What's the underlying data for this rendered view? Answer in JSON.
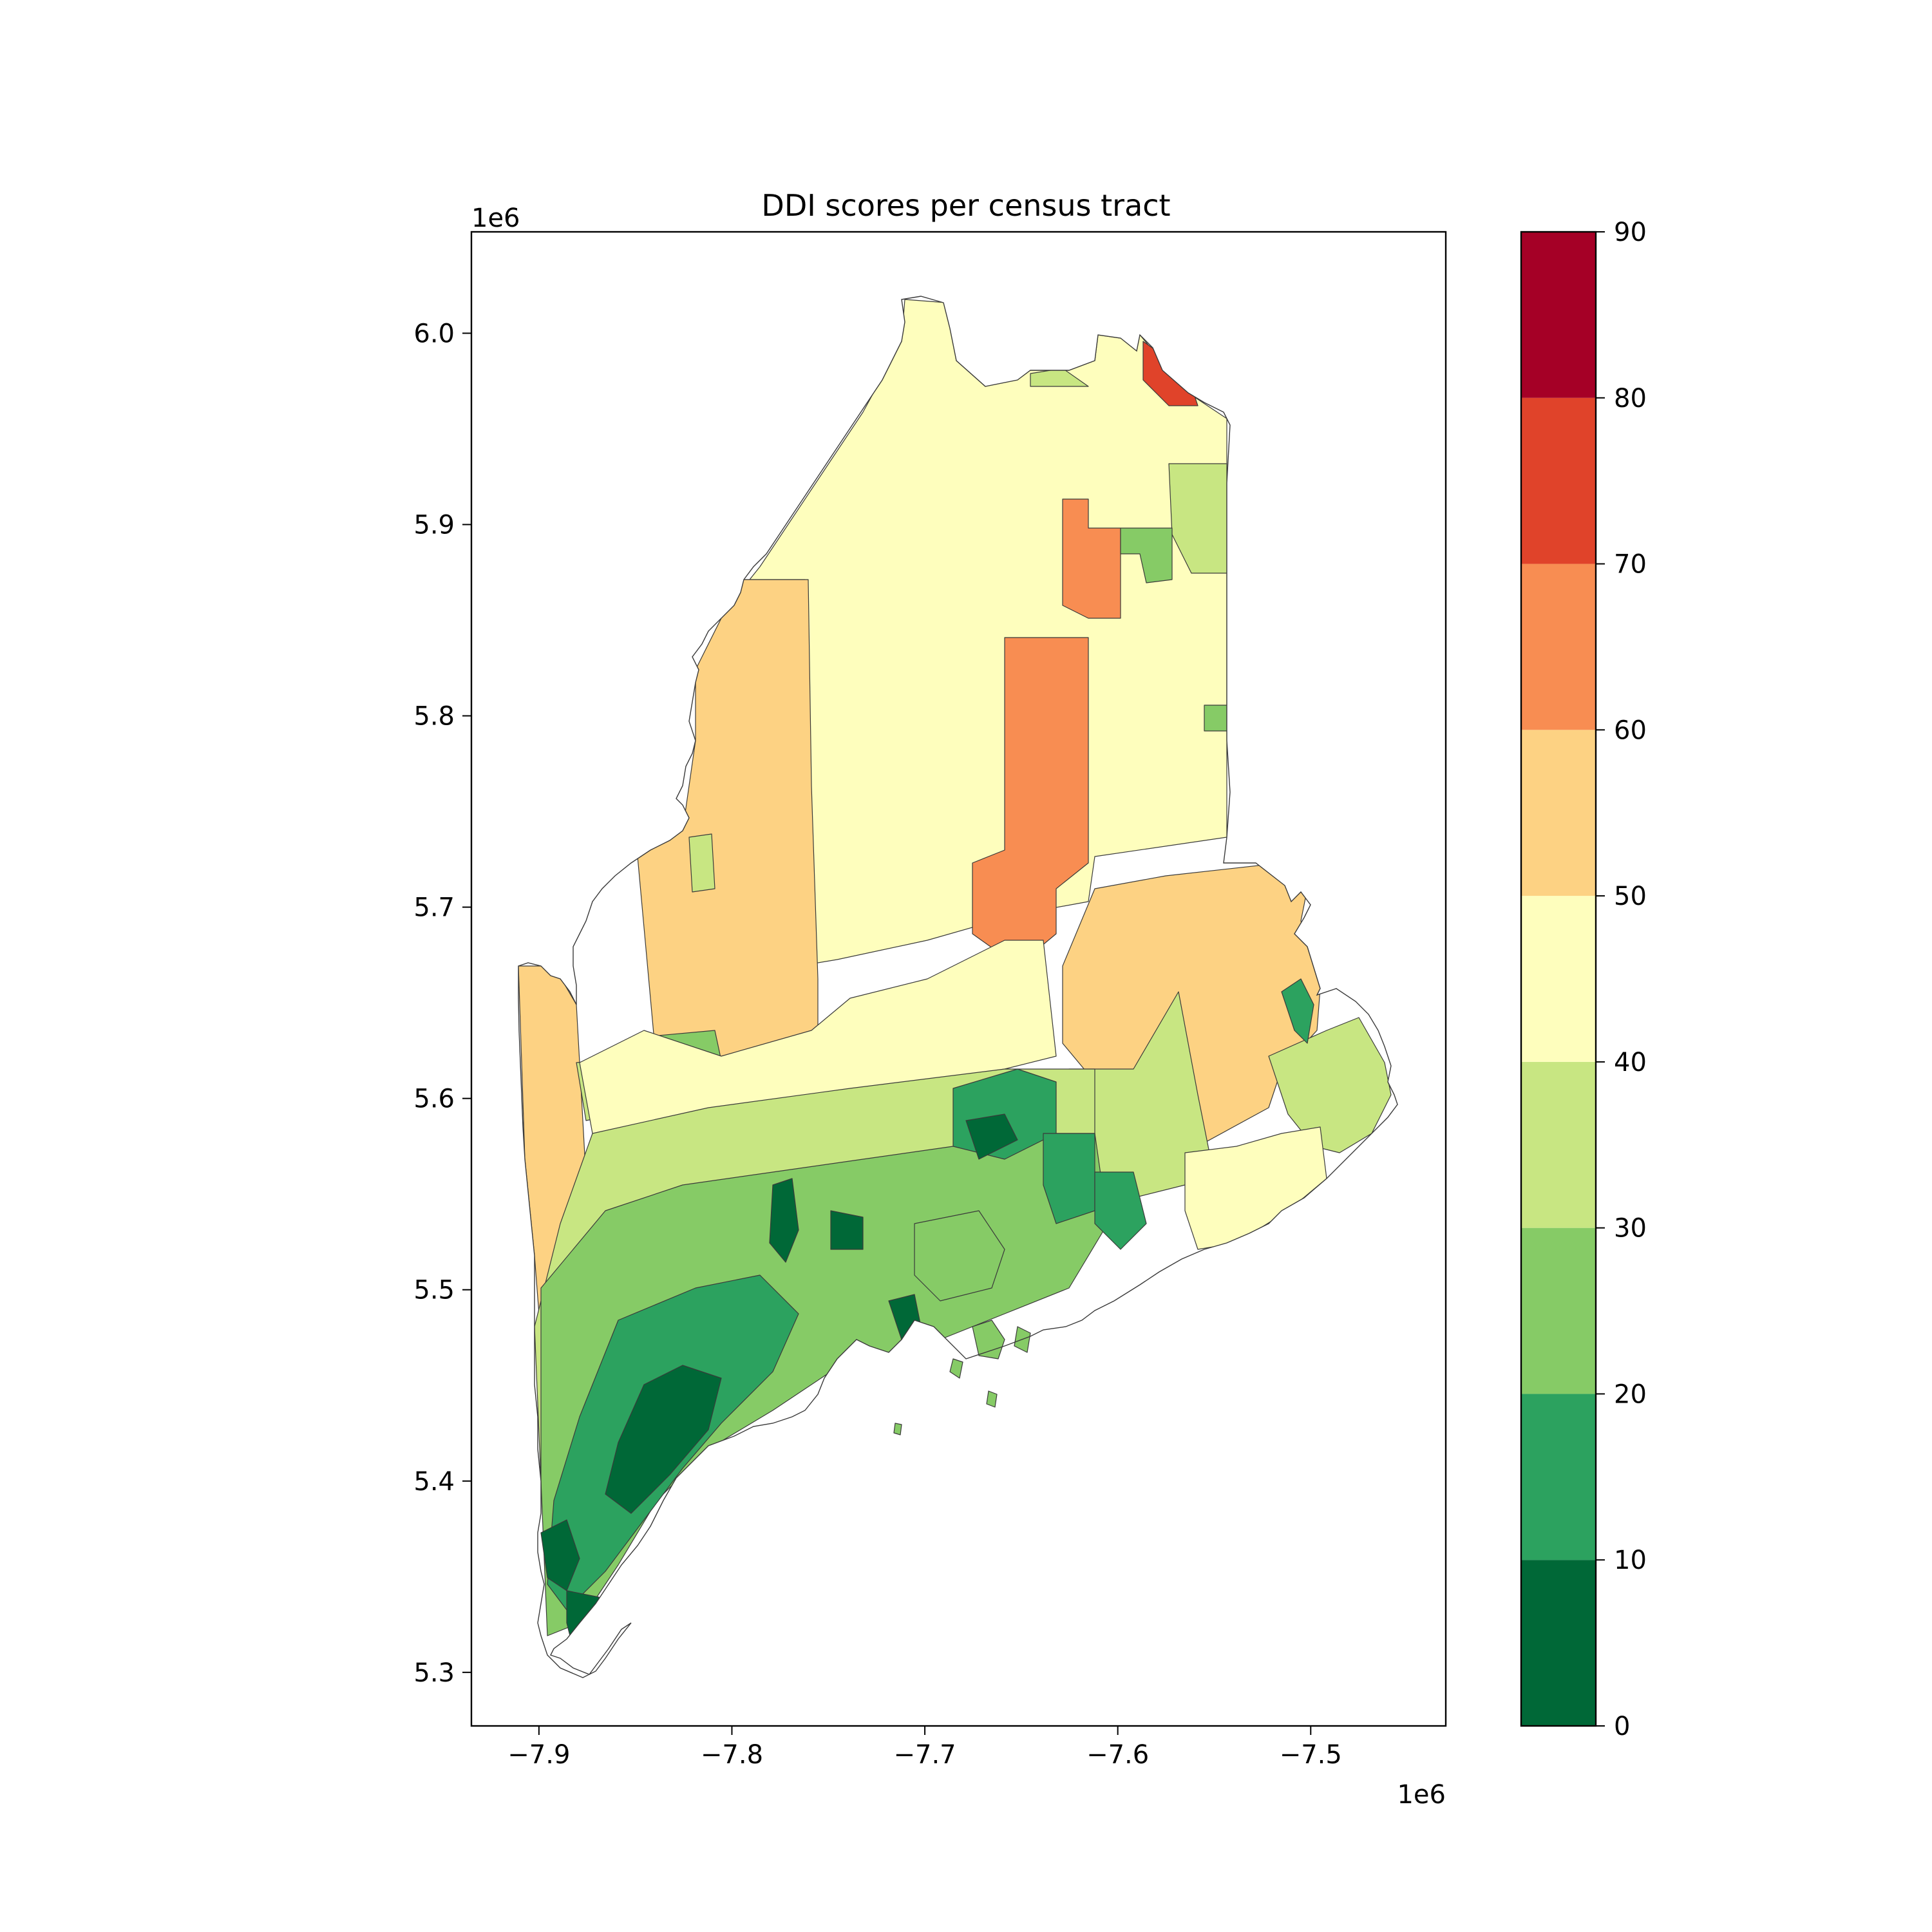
{
  "title": "DDI scores per census tract",
  "x_axis": {
    "offset_label": "1e6",
    "ticks": [
      {
        "value": -7.9,
        "label": "−7.9"
      },
      {
        "value": -7.8,
        "label": "−7.8"
      },
      {
        "value": -7.7,
        "label": "−7.7"
      },
      {
        "value": -7.6,
        "label": "−7.6"
      },
      {
        "value": -7.5,
        "label": "−7.5"
      }
    ],
    "range": [
      -7.935,
      -7.43
    ]
  },
  "y_axis": {
    "offset_label": "1e6",
    "ticks": [
      {
        "value": 5.3,
        "label": "5.3"
      },
      {
        "value": 5.4,
        "label": "5.4"
      },
      {
        "value": 5.5,
        "label": "5.5"
      },
      {
        "value": 5.6,
        "label": "5.6"
      },
      {
        "value": 5.7,
        "label": "5.7"
      },
      {
        "value": 5.8,
        "label": "5.8"
      },
      {
        "value": 5.9,
        "label": "5.9"
      },
      {
        "value": 6.0,
        "label": "6.0"
      }
    ],
    "range": [
      5.272,
      6.053
    ]
  },
  "colorbar": {
    "bins": [
      {
        "min": 0,
        "max": 10,
        "color": "#006837"
      },
      {
        "min": 10,
        "max": 20,
        "color": "#2ca25f"
      },
      {
        "min": 20,
        "max": 30,
        "color": "#86cb66"
      },
      {
        "min": 30,
        "max": 40,
        "color": "#c8e682"
      },
      {
        "min": 40,
        "max": 50,
        "color": "#fefebd"
      },
      {
        "min": 50,
        "max": 60,
        "color": "#fdd283"
      },
      {
        "min": 60,
        "max": 70,
        "color": "#f88d52"
      },
      {
        "min": 70,
        "max": 80,
        "color": "#e0432a"
      },
      {
        "min": 80,
        "max": 90,
        "color": "#a50026"
      }
    ],
    "ticks": [
      {
        "value": 0,
        "label": "0"
      },
      {
        "value": 10,
        "label": "10"
      },
      {
        "value": 20,
        "label": "20"
      },
      {
        "value": 30,
        "label": "30"
      },
      {
        "value": 40,
        "label": "40"
      },
      {
        "value": 50,
        "label": "50"
      },
      {
        "value": 60,
        "label": "60"
      },
      {
        "value": 70,
        "label": "70"
      },
      {
        "value": 80,
        "label": "80"
      },
      {
        "value": 90,
        "label": "90"
      }
    ]
  }
}
